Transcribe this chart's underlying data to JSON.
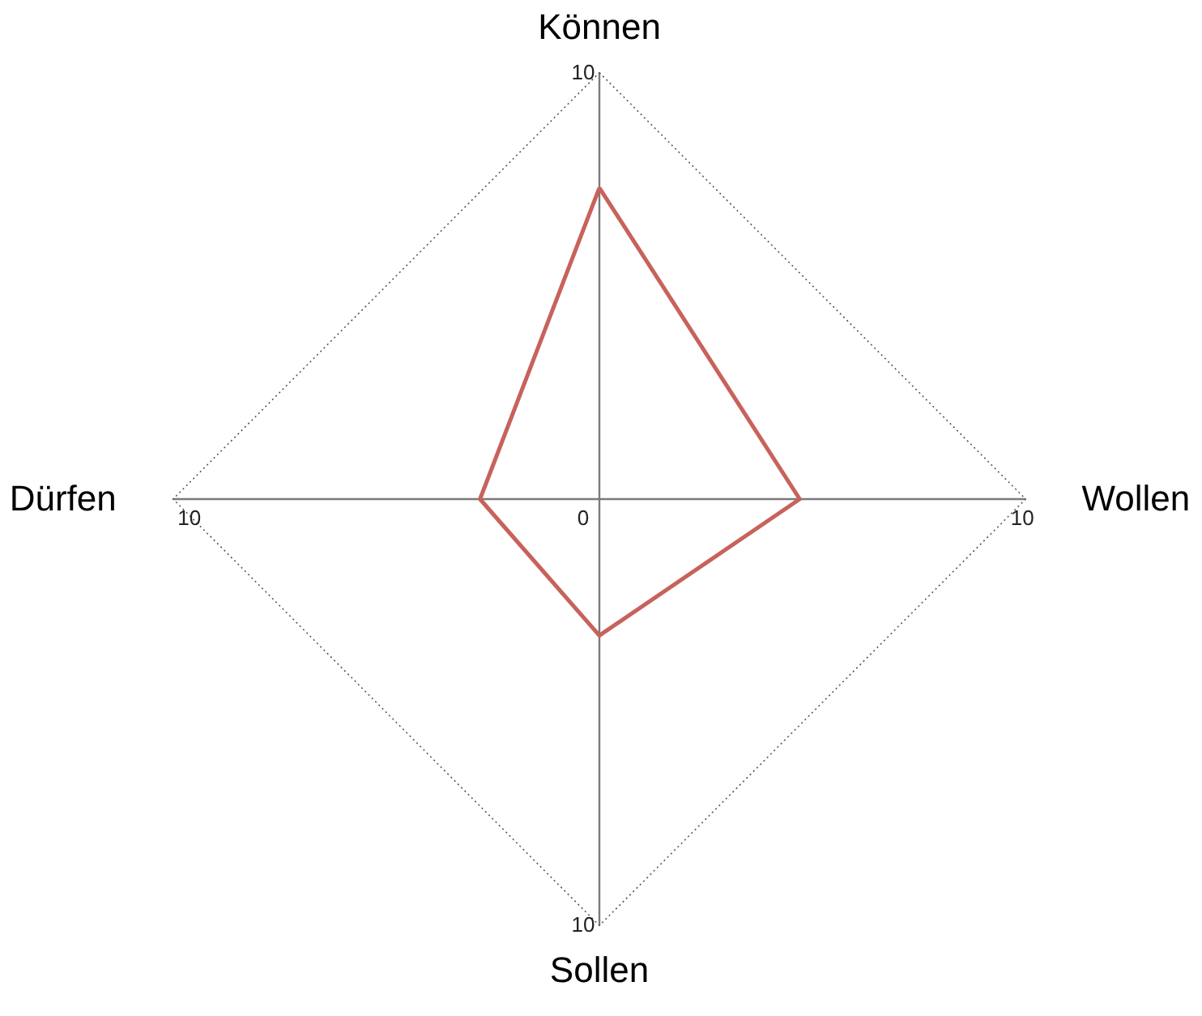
{
  "chart_data": {
    "type": "radar",
    "categories": [
      "Können",
      "Wollen",
      "Sollen",
      "Dürfen"
    ],
    "series": [
      {
        "color": "#c8625c",
        "values": [
          7.3,
          4.7,
          3.2,
          2.8
        ]
      }
    ],
    "annotations": [
      "10",
      "10",
      "10"
    ],
    "ylim": [
      0,
      10
    ],
    "yticks": [
      0,
      10
    ],
    "grid": true,
    "line_style": "solid",
    "marker": "none"
  }
}
